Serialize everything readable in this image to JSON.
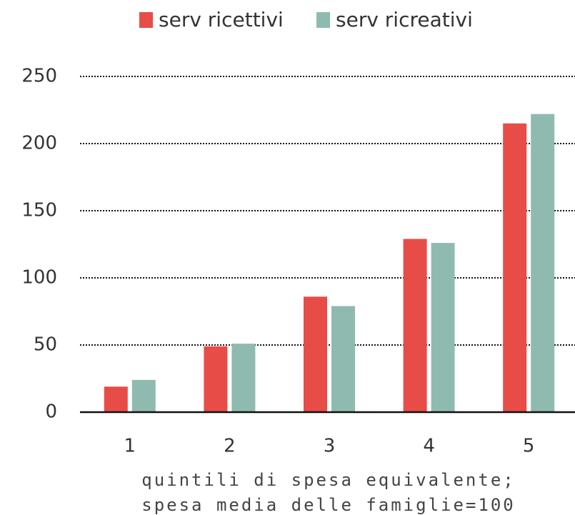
{
  "chart_data": {
    "type": "bar",
    "categories": [
      "1",
      "2",
      "3",
      "4",
      "5"
    ],
    "series": [
      {
        "name": "serv ricettivi",
        "color": "#e84c47",
        "values": [
          19,
          49,
          86,
          129,
          215
        ]
      },
      {
        "name": "serv ricreativi",
        "color": "#8fbab0",
        "values": [
          24,
          51,
          79,
          126,
          222
        ]
      }
    ],
    "xlabel": [
      "quintili di spesa equivalente;",
      "spesa media delle famiglie=100"
    ],
    "ylim": [
      0,
      250
    ],
    "yticks": [
      0,
      50,
      100,
      150,
      200,
      250
    ],
    "grid": true,
    "legend": "top"
  }
}
